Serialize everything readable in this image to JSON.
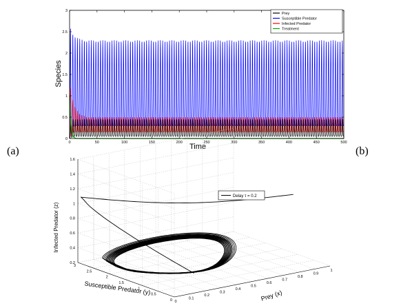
{
  "panel_labels": {
    "a": "(a)",
    "b": "(b)"
  },
  "chart_data": [
    {
      "type": "line",
      "xlabel": "Time",
      "ylabel": "Species",
      "xlim": [
        0,
        500
      ],
      "ylim": [
        0,
        3
      ],
      "x_ticks": [
        0,
        50,
        100,
        150,
        200,
        250,
        300,
        350,
        400,
        450,
        500
      ],
      "y_ticks": [
        0,
        0.5,
        1,
        1.5,
        2,
        2.5,
        3
      ],
      "legend_position": "top-right",
      "series": [
        {
          "name": "Prey",
          "color": "#000000",
          "oscillation_min": 0.05,
          "oscillation_max": 0.45,
          "period": 4.2
        },
        {
          "name": "Susceptible Predator",
          "color": "#0000ff",
          "oscillation_min": 0.3,
          "oscillation_max": 2.3,
          "initial_peak": 2.65,
          "period": 4.2
        },
        {
          "name": "Infected Predator",
          "color": "#ff0000",
          "oscillation_min": 0.15,
          "oscillation_max": 0.5,
          "initial_peak": 1.3,
          "period": 4.2
        },
        {
          "name": "Treatment",
          "color": "#00aa00",
          "initial_value": 1.0,
          "final_value": 0.0
        }
      ]
    },
    {
      "type": "line",
      "projection": "3d",
      "xlabel": "Prey (x)",
      "ylabel": "Susceptible Predator (y)",
      "zlabel": "Infected Predator (z)",
      "x_ticks": [
        0,
        0.1,
        0.2,
        0.3,
        0.4,
        0.5,
        0.6,
        0.7,
        0.8,
        0.9,
        1
      ],
      "y_ticks": [
        0,
        0.5,
        1,
        1.5,
        2,
        2.5,
        3
      ],
      "z_ticks": [
        0.2,
        0.4,
        0.6,
        0.8,
        1,
        1.2,
        1.4,
        1.6
      ],
      "grid": true,
      "legend_position": "top-right",
      "series": [
        {
          "name": "Delay τ = 0.2",
          "color": "#000000"
        }
      ]
    }
  ]
}
